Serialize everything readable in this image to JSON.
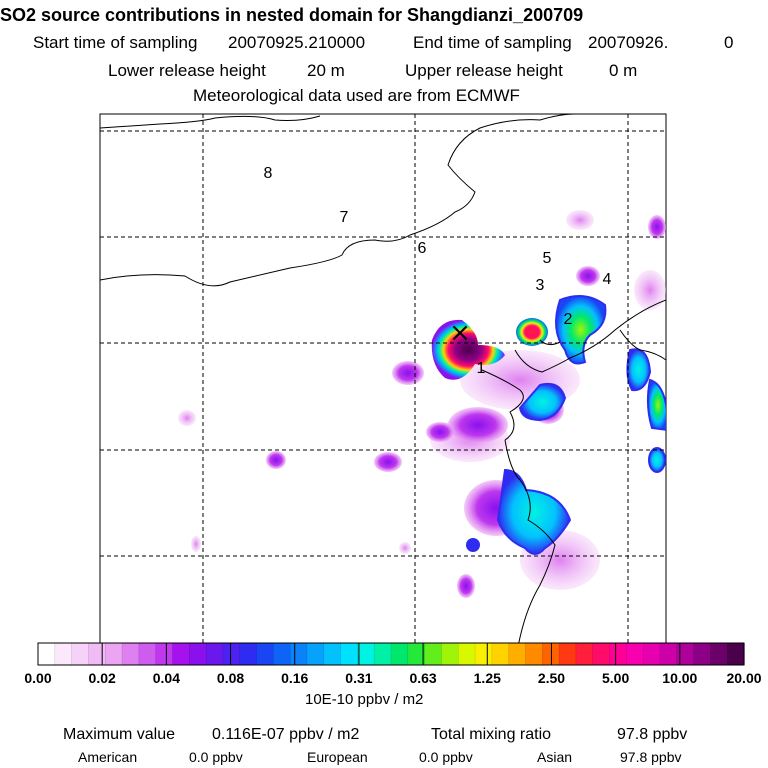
{
  "header": {
    "title": "SO2 source contributions in nested domain for Shangdianzi_200709",
    "start_label": "Start time of sampling",
    "start_value": "20070925.210000",
    "end_label": "End time of sampling",
    "end_value": "20070926.",
    "end_hour": "0",
    "lower_label": "Lower release height",
    "lower_value": "20 m",
    "upper_label": "Upper release height",
    "upper_value": "0 m",
    "met_line": "Meteorological data used are from ECMWF"
  },
  "chart_data": {
    "type": "heatmap",
    "title": "SO2 source contributions in nested domain for Shangdianzi_200709",
    "map_labels": [
      "1",
      "2",
      "3",
      "4",
      "5",
      "6",
      "7",
      "8"
    ],
    "receptor_marker": "×",
    "grid": true,
    "colorbar": {
      "tick_labels": [
        "0.00",
        "0.02",
        "0.04",
        "0.08",
        "0.16",
        "0.31",
        "0.63",
        "1.25",
        "2.50",
        "5.00",
        "10.00",
        "20.00"
      ],
      "tick_values": [
        0.0,
        0.02,
        0.04,
        0.08,
        0.16,
        0.31,
        0.63,
        1.25,
        2.5,
        5.0,
        10.0,
        20.0
      ],
      "units": "10E-10 ppbv / m2",
      "colors": [
        "#ffffff",
        "#fbe8fb",
        "#f6d2f8",
        "#f1bbf5",
        "#eba5f3",
        "#de80f0",
        "#cf5cef",
        "#bf38ee",
        "#a612ee",
        "#8a10ee",
        "#6b18ef",
        "#4d22f0",
        "#2e2cf1",
        "#1945f5",
        "#0f64f8",
        "#0a83fa",
        "#06a2fc",
        "#03c1fd",
        "#00e0ff",
        "#00f2e2",
        "#00f0a6",
        "#00e86c",
        "#24e83a",
        "#62ee1a",
        "#a0f40a",
        "#d8f800",
        "#f8f000",
        "#ffd200",
        "#ffae00",
        "#ff8a00",
        "#ff6200",
        "#ff3a12",
        "#ff1e3c",
        "#ff0c6a",
        "#ff0096",
        "#f800b0",
        "#e600b0",
        "#cc00a6",
        "#ae009a",
        "#8c0086",
        "#6a0068",
        "#4a004a"
      ]
    },
    "heat_blobs": [
      {
        "lon": 445,
        "lat": 350,
        "level": 0.9,
        "shape": "source"
      },
      {
        "lon": 532,
        "lat": 332,
        "level": 0.7,
        "shape": "small"
      },
      {
        "lon": 580,
        "lat": 315,
        "level": 0.55,
        "shape": "small"
      },
      {
        "lon": 540,
        "lat": 505,
        "level": 0.45,
        "shape": "large"
      }
    ]
  },
  "footer": {
    "max_label": "Maximum value",
    "max_value": "0.116E-07 ppbv / m2",
    "total_label": "Total mixing ratio",
    "total_value": "97.8 ppbv",
    "american_label": "American",
    "american_value": "0.0 ppbv",
    "european_label": "European",
    "european_value": "0.0 ppbv",
    "asian_label": "Asian",
    "asian_value": "97.8 ppbv"
  }
}
